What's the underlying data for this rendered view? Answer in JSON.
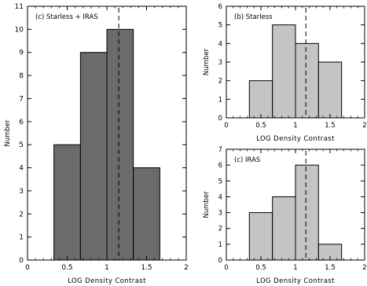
{
  "chart_data": [
    {
      "type": "bar",
      "title": "(c) Starless + IRAS",
      "xlabel": "LOG Density Contrast",
      "ylabel": "Number",
      "xlim": [
        0,
        2
      ],
      "ylim": [
        0,
        11
      ],
      "xticks": [
        0,
        0.5,
        1,
        1.5,
        2
      ],
      "yticks": [
        0,
        1,
        2,
        3,
        4,
        5,
        6,
        7,
        8,
        9,
        10,
        11
      ],
      "bin_edges": [
        0.333,
        0.667,
        1.0,
        1.333,
        1.667
      ],
      "values": [
        5,
        9,
        10,
        4
      ],
      "median_line_x": 1.15,
      "bar_color": "#6b6b6b",
      "grid": false
    },
    {
      "type": "bar",
      "title": "(b) Starless",
      "xlabel": "LOG Density Contrast",
      "ylabel": "Number",
      "xlim": [
        0,
        2
      ],
      "ylim": [
        0,
        6
      ],
      "xticks": [
        0,
        0.5,
        1,
        1.5,
        2
      ],
      "yticks": [
        0,
        1,
        2,
        3,
        4,
        5,
        6
      ],
      "bin_edges": [
        0.333,
        0.667,
        1.0,
        1.333,
        1.667
      ],
      "values": [
        2,
        5,
        4,
        3
      ],
      "median_line_x": 1.15,
      "bar_color": "#c4c4c4",
      "grid": false
    },
    {
      "type": "bar",
      "title": "(c) IRAS",
      "xlabel": "LOG Density Contrast",
      "ylabel": "Number",
      "xlim": [
        0,
        2
      ],
      "ylim": [
        0,
        7
      ],
      "xticks": [
        0,
        0.5,
        1,
        1.5,
        2
      ],
      "yticks": [
        0,
        1,
        2,
        3,
        4,
        5,
        6,
        7
      ],
      "bin_edges": [
        0.333,
        0.667,
        1.0,
        1.333,
        1.667
      ],
      "values": [
        3,
        4,
        6,
        1
      ],
      "median_line_x": 1.15,
      "bar_color": "#c4c4c4",
      "grid": false
    }
  ]
}
